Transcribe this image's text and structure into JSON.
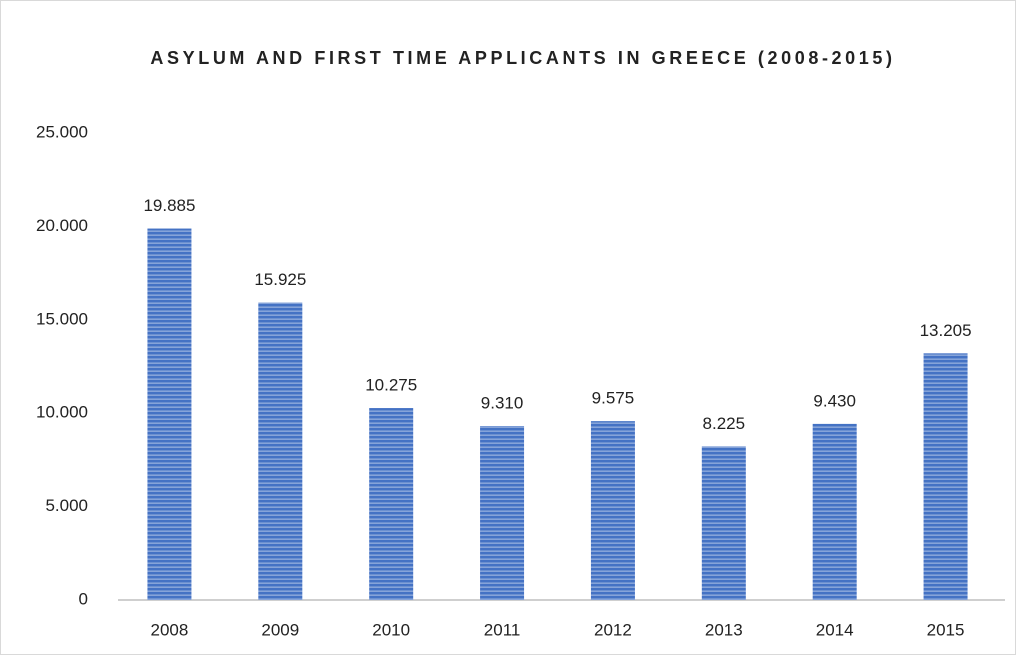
{
  "chart_data": {
    "type": "bar",
    "title": "ASYLUM AND FIRST TIME APPLICANTS IN GREECE (2008-2015)",
    "categories": [
      "2008",
      "2009",
      "2010",
      "2011",
      "2012",
      "2013",
      "2014",
      "2015"
    ],
    "values": [
      19885,
      15925,
      10275,
      9310,
      9575,
      8225,
      9430,
      13205
    ],
    "value_labels": [
      "19.885",
      "15.925",
      "10.275",
      "9.310",
      "9.575",
      "8.225",
      "9.430",
      "13.205"
    ],
    "color": "#4472c4",
    "ylim": [
      0,
      25000
    ],
    "yticks": [
      0,
      {
        "value": 5000,
        "label": "5.000"
      },
      {
        "value": 10000,
        "label": "10.000"
      },
      {
        "value": 15000,
        "label": "15.000"
      },
      {
        "value": 20000,
        "label": "20.000"
      },
      {
        "value": 25000,
        "label": "25.000"
      }
    ],
    "grid": false
  }
}
